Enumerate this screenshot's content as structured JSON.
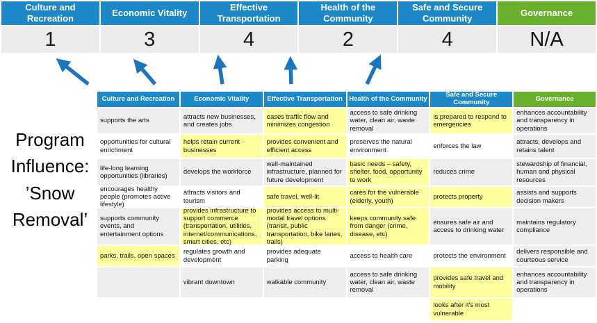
{
  "program_label": "Program\nInfluence:\n’Snow\nRemoval’",
  "colors": {
    "header_blue": "#1d88c7",
    "header_green": "#69b02c",
    "arrow_blue": "#1b75bc",
    "cell_gray": "#eeeeee",
    "score_row_gray": "#ebebeb",
    "highlight_yellow": "#ffff9e"
  },
  "scorecard": {
    "columns": [
      {
        "label": "Culture and Recreation",
        "score": "1",
        "color": "blue"
      },
      {
        "label": "Economic Vitality",
        "score": "3",
        "color": "blue"
      },
      {
        "label": "Effective Transportation",
        "score": "4",
        "color": "blue"
      },
      {
        "label": "Health of the Community",
        "score": "2",
        "color": "blue"
      },
      {
        "label": "Safe and Secure Community",
        "score": "4",
        "color": "blue"
      },
      {
        "label": "Governance",
        "score": "N/A",
        "color": "green"
      }
    ]
  },
  "matrix": {
    "headers": [
      {
        "label": "Culture and Recreation",
        "color": "blue"
      },
      {
        "label": "Economic Vitality",
        "color": "blue"
      },
      {
        "label": "Effective Transportation",
        "color": "blue"
      },
      {
        "label": "Health of the Community",
        "color": "blue"
      },
      {
        "label": "Safe and Secure Community",
        "color": "blue"
      },
      {
        "label": "Governance",
        "color": "green"
      }
    ],
    "rows": [
      [
        {
          "t": "supports the arts",
          "bg": "gray"
        },
        {
          "t": "attracts new businesses, and creates jobs",
          "bg": "gray"
        },
        {
          "t": "eases traffic flow and minimizes congestion",
          "bg": "yellow"
        },
        {
          "t": "access to safe drinking water, clean air, waste removal",
          "bg": "gray"
        },
        {
          "t": "is prepared to respond to emergencies",
          "bg": "yellow"
        },
        {
          "t": "enhances accountability and transparency in operations",
          "bg": "gray"
        }
      ],
      [
        {
          "t": "opportunities for cultural enrichment",
          "bg": "white"
        },
        {
          "t": "helps retain current businesses",
          "bg": "yellow"
        },
        {
          "t": "provides convenient and efficient access",
          "bg": "yellow"
        },
        {
          "t": "preserves the natural environment",
          "bg": "white"
        },
        {
          "t": "enforces the law",
          "bg": "white"
        },
        {
          "t": "attracts, develops and retains talent",
          "bg": "gray"
        }
      ],
      [
        {
          "t": "life-long learning opportunities (libraries)",
          "bg": "gray"
        },
        {
          "t": "develops the workforce",
          "bg": "gray"
        },
        {
          "t": "well-maintained infrastructure, planned for future development",
          "bg": "gray"
        },
        {
          "t": "basic needs – safety, shelter, food, opportunity to work",
          "bg": "yellow"
        },
        {
          "t": "reduces crime",
          "bg": "gray"
        },
        {
          "t": "stewardship of financial, human and physical resources",
          "bg": "gray"
        }
      ],
      [
        {
          "t": "encourages healthy people (promotes active lifestyle)",
          "bg": "white"
        },
        {
          "t": "attracts visitors and tourism",
          "bg": "white"
        },
        {
          "t": "safe travel, well-lit",
          "bg": "yellow"
        },
        {
          "t": "cares for the vulnerable (elderly, youth)",
          "bg": "yellow"
        },
        {
          "t": "protects property",
          "bg": "yellow"
        },
        {
          "t": "assists and supports decision makers",
          "bg": "gray"
        }
      ],
      [
        {
          "t": "supports community events, and entertainment options",
          "bg": "gray"
        },
        {
          "t": "provides infrastructure to support commerce (transportation, utilities, internet/communications, smart cities, etc)",
          "bg": "yellow"
        },
        {
          "t": "provides access to multi-modal travel options (transit, public transportation, bike lanes, trails)",
          "bg": "yellow"
        },
        {
          "t": "keeps community safe from danger (crime, disease, etc)",
          "bg": "yellow"
        },
        {
          "t": "ensures safe air and access to drinking water",
          "bg": "gray"
        },
        {
          "t": "maintains regulatory compliance",
          "bg": "gray"
        }
      ],
      [
        {
          "t": "parks, trails, open spaces",
          "bg": "yellow"
        },
        {
          "t": "regulates growth and development",
          "bg": "white"
        },
        {
          "t": "provides adequate parking",
          "bg": "white"
        },
        {
          "t": "access to health care",
          "bg": "white"
        },
        {
          "t": "protects the environment",
          "bg": "white"
        },
        {
          "t": "delivers responsible and courteous service",
          "bg": "gray"
        }
      ],
      [
        {
          "t": "",
          "bg": "gray"
        },
        {
          "t": "vibrant downtown",
          "bg": "gray"
        },
        {
          "t": "walkable community",
          "bg": "gray"
        },
        {
          "t": "access to safe drinking water, clean air, waste removal",
          "bg": "gray"
        },
        {
          "t": "provides safe travel and mobility",
          "bg": "yellow"
        },
        {
          "t": "enhances accountability and transparency in operations",
          "bg": "gray"
        }
      ],
      [
        {
          "t": "",
          "bg": "white"
        },
        {
          "t": "",
          "bg": "white"
        },
        {
          "t": "",
          "bg": "white"
        },
        {
          "t": "",
          "bg": "white"
        },
        {
          "t": "looks after it's most vulnerable",
          "bg": "yellow"
        },
        {
          "t": "",
          "bg": "white"
        }
      ]
    ]
  }
}
